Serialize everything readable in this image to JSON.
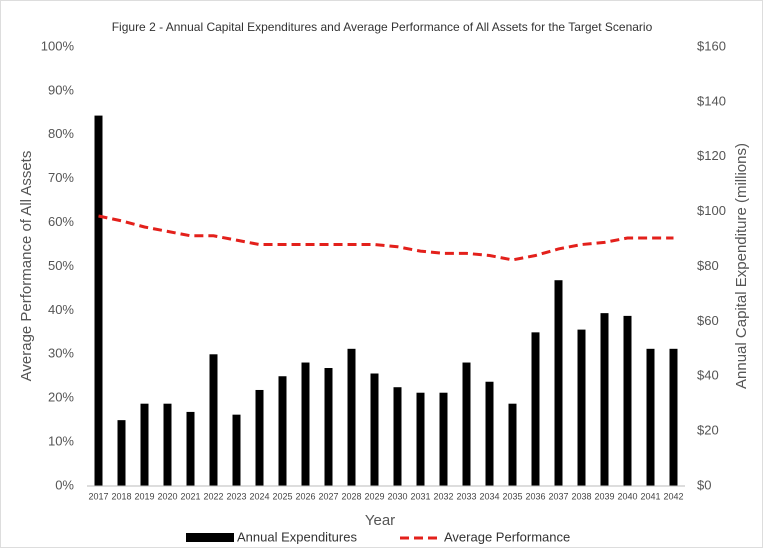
{
  "chart_data": {
    "type": "bar_line",
    "title": "Figure 2 - Annual Capital Expenditures and Average Performance of All Assets for the Target Scenario",
    "x_label": "Year",
    "y_label": "Average Performance of All Assets",
    "y2_label": "Annual Capital Expenditure (millions)",
    "categories": [
      "2017",
      "2018",
      "2019",
      "2020",
      "2021",
      "2022",
      "2023",
      "2024",
      "2025",
      "2026",
      "2027",
      "2028",
      "2029",
      "2030",
      "2031",
      "2032",
      "2033",
      "2034",
      "2035",
      "2036",
      "2037",
      "2038",
      "2039",
      "2040",
      "2041",
      "2042"
    ],
    "series": [
      {
        "name": "Annual Expenditures",
        "type": "bar",
        "color": "#000000",
        "axis": "y2",
        "values": [
          135,
          24,
          30,
          30,
          27,
          48,
          26,
          35,
          40,
          45,
          43,
          50,
          41,
          36,
          34,
          34,
          45,
          38,
          30,
          56,
          75,
          57,
          63,
          62,
          50,
          50
        ]
      },
      {
        "name": "Average Performance",
        "type": "line",
        "dashed": true,
        "color": "#e3201b",
        "axis": "y",
        "values": [
          61.5,
          60.4,
          59,
          58,
          57,
          57,
          56,
          55,
          55,
          55,
          55,
          55,
          55,
          54.5,
          53.5,
          53,
          53,
          52.5,
          51.5,
          52.5,
          54,
          55,
          55.5,
          56.5,
          56.5,
          56.5
        ]
      }
    ],
    "ylim": [
      0,
      100
    ],
    "yticks": [
      {
        "value": 0,
        "label": "0%"
      },
      {
        "value": 10,
        "label": "10%"
      },
      {
        "value": 20,
        "label": "20%"
      },
      {
        "value": 30,
        "label": "30%"
      },
      {
        "value": 40,
        "label": "40%"
      },
      {
        "value": 50,
        "label": "50%"
      },
      {
        "value": 60,
        "label": "60%"
      },
      {
        "value": 70,
        "label": "70%"
      },
      {
        "value": 80,
        "label": "80%"
      },
      {
        "value": 90,
        "label": "90%"
      },
      {
        "value": 100,
        "label": "100%"
      }
    ],
    "y2lim": [
      0,
      160
    ],
    "y2ticks": [
      {
        "value": 0,
        "label": "$0"
      },
      {
        "value": 20,
        "label": "$20"
      },
      {
        "value": 40,
        "label": "$40"
      },
      {
        "value": 60,
        "label": "$60"
      },
      {
        "value": 80,
        "label": "$80"
      },
      {
        "value": 100,
        "label": "$100"
      },
      {
        "value": 120,
        "label": "$120"
      },
      {
        "value": 140,
        "label": "$140"
      },
      {
        "value": 160,
        "label": "$160"
      }
    ],
    "legend": "bottom"
  }
}
